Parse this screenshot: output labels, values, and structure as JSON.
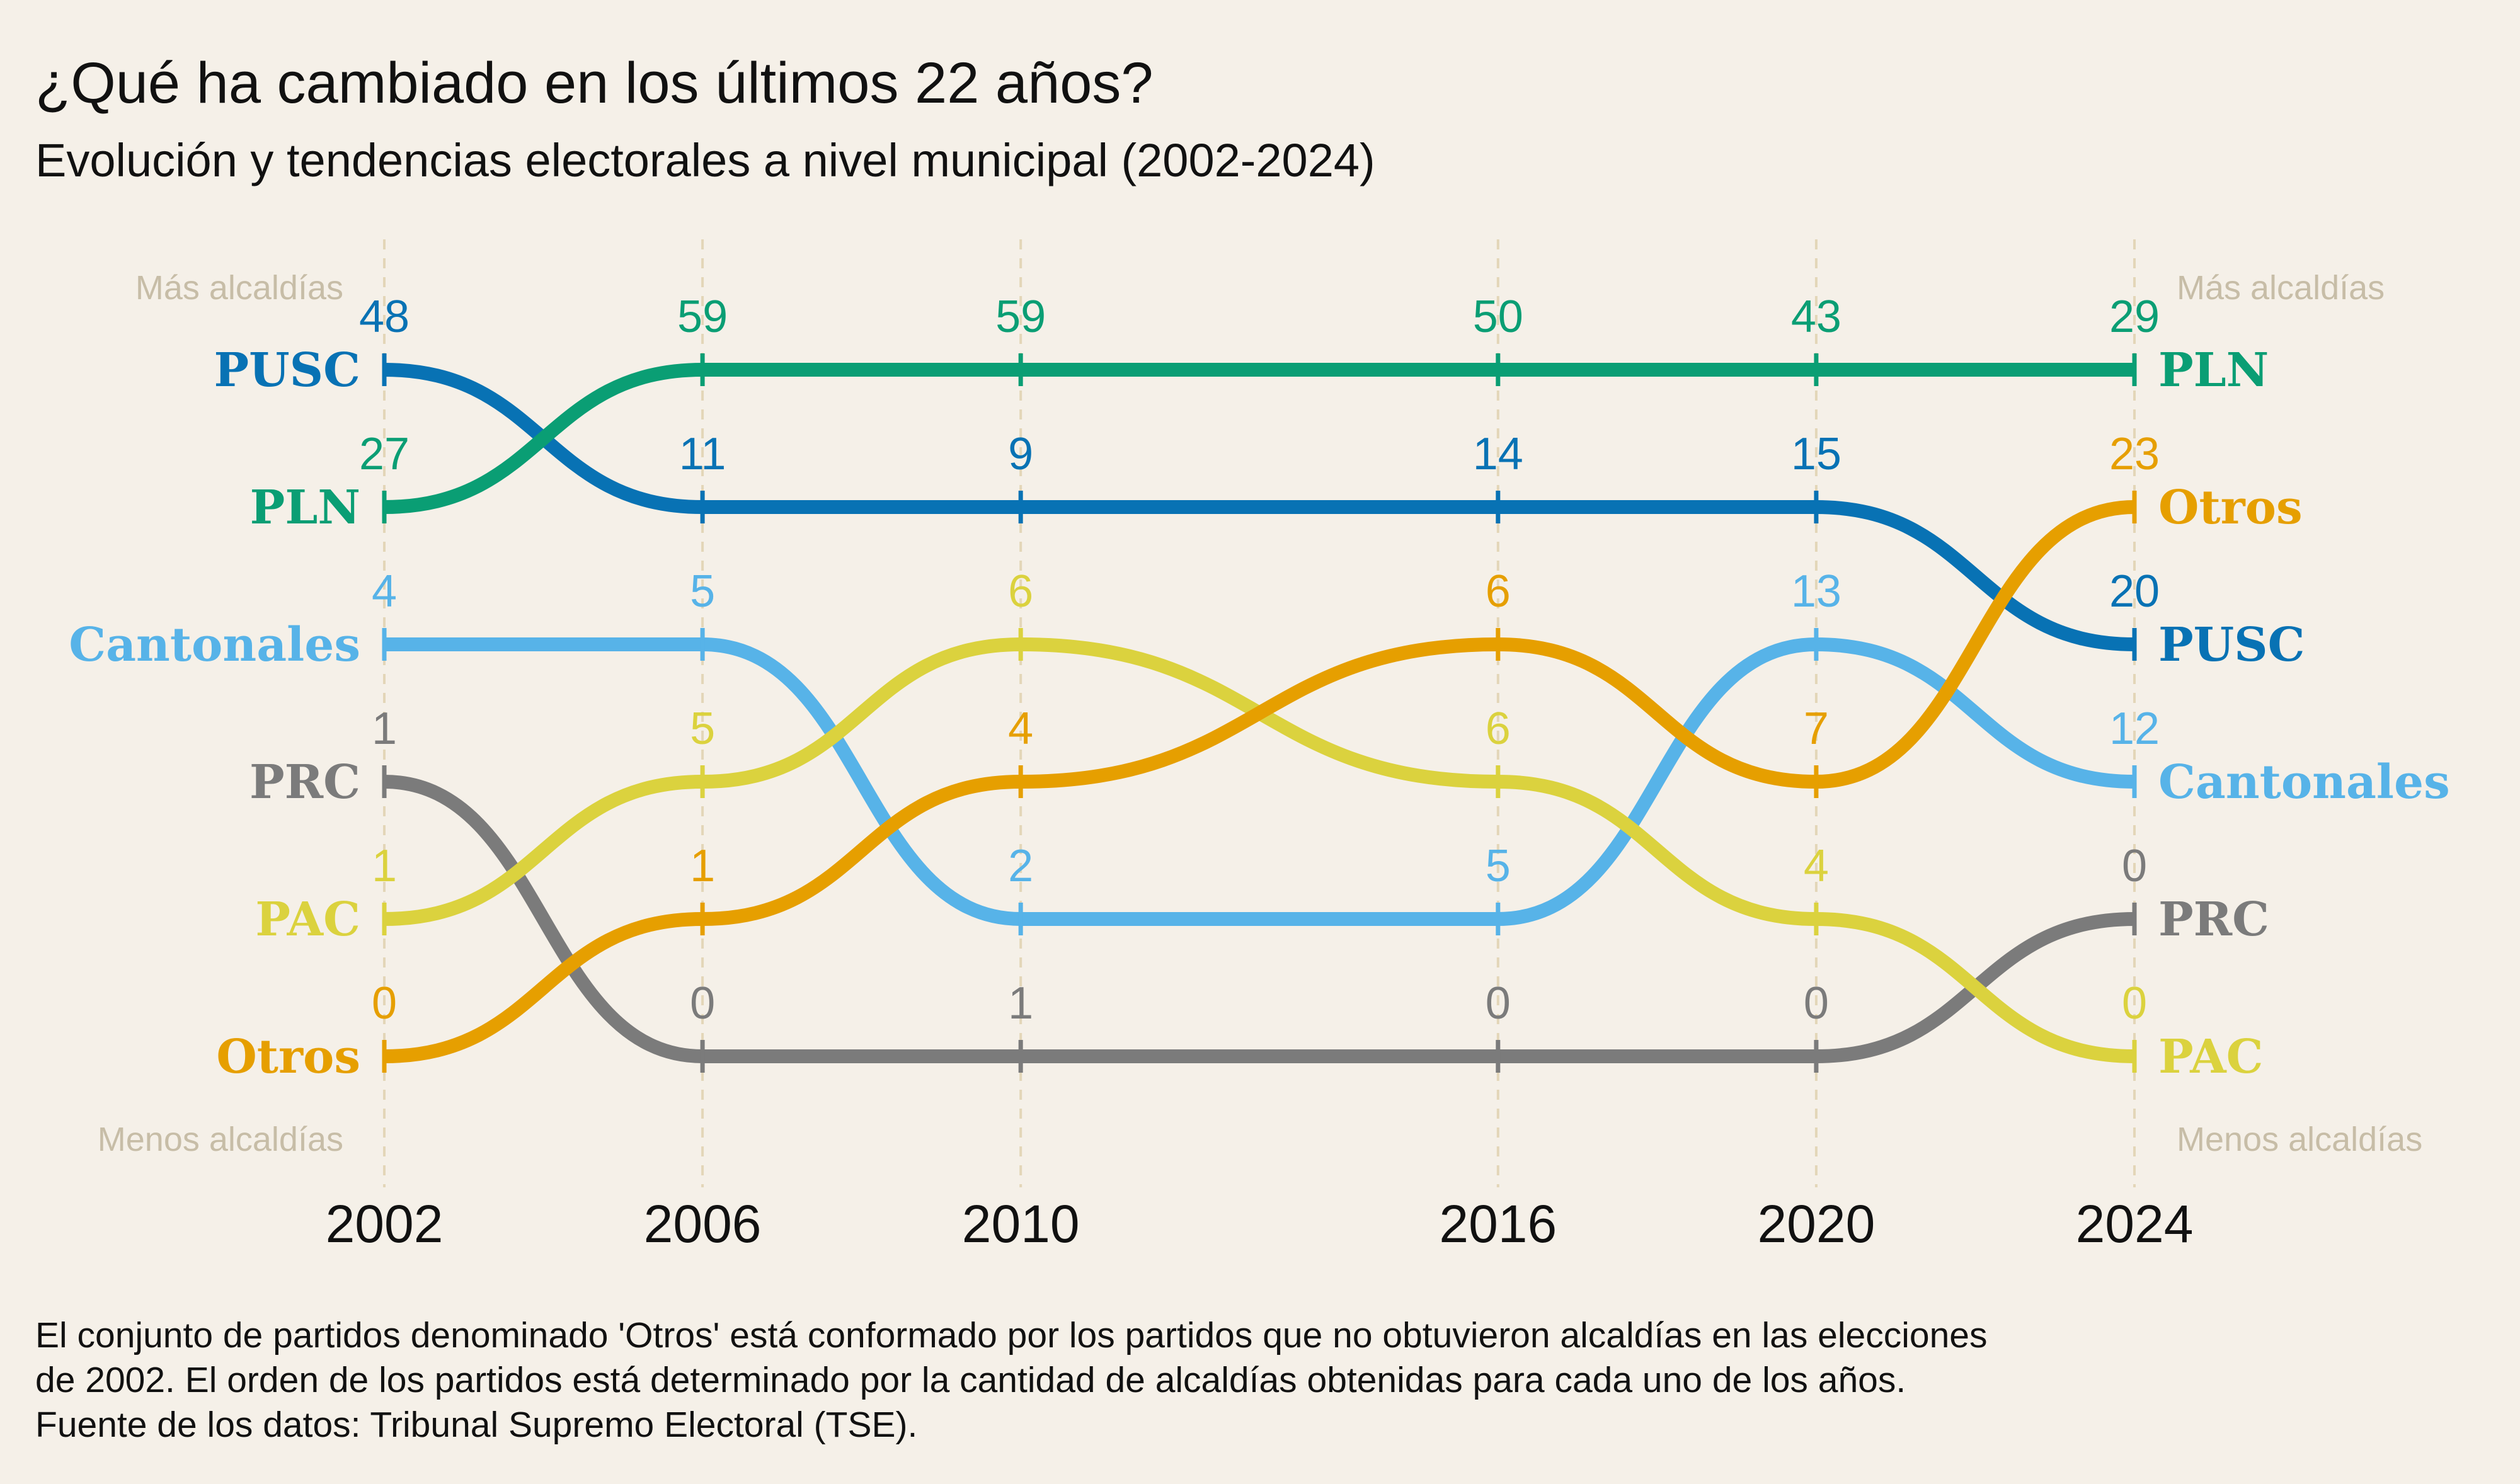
{
  "header": {
    "title": "¿Qué ha cambiado en los últimos 22 años?",
    "subtitle": "Evolución y tendencias electorales a nivel municipal (2002-2024)"
  },
  "chart_data": {
    "type": "line",
    "title": "¿Qué ha cambiado en los últimos 22 años?",
    "subtitle": "Evolución y tendencias electorales a nivel municipal (2002-2024)",
    "x": [
      2002,
      2006,
      2010,
      2016,
      2020,
      2024
    ],
    "xlabel": "",
    "ylabel": "",
    "axis_top_label": "Más alcaldías",
    "axis_bottom_label": "Menos alcaldías",
    "grid": true,
    "series": [
      {
        "name": "PUSC",
        "color": "#0872b4",
        "values": [
          48,
          11,
          9,
          14,
          15,
          20
        ],
        "ranks": [
          1,
          2,
          2,
          2,
          2,
          3
        ]
      },
      {
        "name": "PLN",
        "color": "#0a9e74",
        "values": [
          27,
          59,
          59,
          50,
          43,
          29
        ],
        "ranks": [
          2,
          1,
          1,
          1,
          1,
          1
        ]
      },
      {
        "name": "Cantonales",
        "color": "#57b3e8",
        "values": [
          4,
          5,
          2,
          5,
          13,
          12
        ],
        "ranks": [
          3,
          3,
          5,
          5,
          3,
          4
        ]
      },
      {
        "name": "PRC",
        "color": "#7b7b7b",
        "values": [
          1,
          0,
          1,
          0,
          0,
          0
        ],
        "ranks": [
          4,
          6,
          6,
          6,
          6,
          5
        ]
      },
      {
        "name": "PAC",
        "color": "#dbd23e",
        "values": [
          1,
          5,
          6,
          6,
          4,
          0
        ],
        "ranks": [
          5,
          4,
          3,
          4,
          5,
          6
        ]
      },
      {
        "name": "Otros",
        "color": "#e69f00",
        "values": [
          0,
          1,
          4,
          6,
          7,
          23
        ],
        "ranks": [
          6,
          5,
          4,
          3,
          4,
          2
        ]
      }
    ]
  },
  "footnote": {
    "line1": "El conjunto de partidos denominado 'Otros' está conformado por los partidos que no obtuvieron alcaldías en las elecciones",
    "line2": "de 2002. El orden de los partidos está determinado por la cantidad de alcaldías obtenidas para cada uno de los años.",
    "line3": "Fuente de los datos: Tribunal Supremo Electoral (TSE)."
  }
}
